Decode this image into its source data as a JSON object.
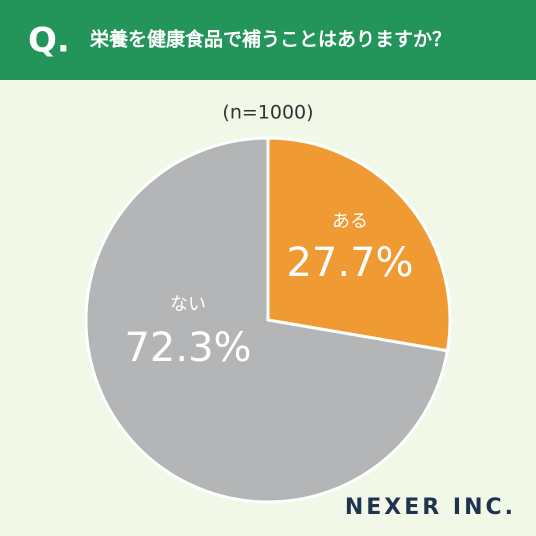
{
  "chart_data": {
    "type": "pie",
    "question_mark": "Q.",
    "title": "栄養を健康食品で補うことはありますか？",
    "subtitle": "(n=1000)",
    "categories": [
      "ある",
      "ない"
    ],
    "values": [
      27.7,
      72.3
    ],
    "value_labels": [
      "27.7%",
      "72.3%"
    ],
    "colors": [
      "#ef9a32",
      "#b4b5b7"
    ],
    "brand": "NEXER INC."
  }
}
